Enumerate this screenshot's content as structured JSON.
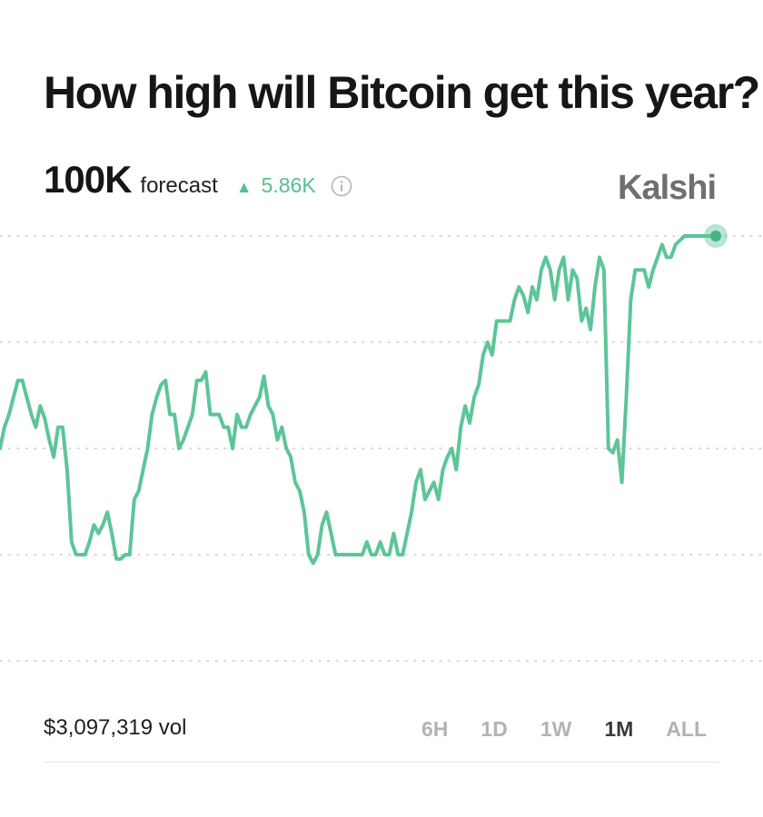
{
  "header": {
    "title": "How high will Bitcoin get this year?"
  },
  "forecast": {
    "value": "100K",
    "label": "forecast",
    "change": "5.86K",
    "change_direction": "up",
    "info_icon": "info-icon",
    "arrow_icon": "triangle-up-icon"
  },
  "brand": {
    "name": "Kalshi"
  },
  "footer": {
    "volume": "$3,097,319 vol",
    "ranges": [
      "6H",
      "1D",
      "1W",
      "1M",
      "ALL"
    ],
    "active_range": "1M"
  },
  "colors": {
    "accent": "#5dc597",
    "grid": "#c9c9c9",
    "brand": "#6f6f6f"
  },
  "chart_data": {
    "type": "line",
    "title": "",
    "xlabel": "",
    "ylabel": "",
    "grid": "horizontal dotted",
    "gridlines": 5,
    "ylim": [
      0,
      100
    ],
    "x": [
      0,
      1,
      2,
      3,
      4,
      5,
      6,
      7,
      8,
      9,
      10,
      11,
      12,
      13,
      14,
      15,
      16,
      17,
      18,
      19,
      20,
      21,
      22,
      23,
      24,
      25,
      26,
      27,
      28,
      29,
      30,
      31,
      32,
      33,
      34,
      35,
      36,
      37,
      38,
      39,
      40,
      41,
      42,
      43,
      44,
      45,
      46,
      47,
      48,
      49,
      50,
      51,
      52,
      53,
      54,
      55,
      56,
      57,
      58,
      59,
      60,
      61,
      62,
      63,
      64,
      65,
      66,
      67,
      68,
      69,
      70,
      71,
      72,
      73,
      74,
      75,
      76,
      77,
      78,
      79,
      80,
      81,
      82,
      83,
      84,
      85,
      86,
      87,
      88,
      89,
      90,
      91,
      92,
      93,
      94,
      95,
      96,
      97,
      98,
      99,
      100,
      101,
      102,
      103,
      104,
      105,
      106,
      107,
      108,
      109,
      110,
      111,
      112,
      113,
      114,
      115,
      116,
      117,
      118,
      119,
      120,
      121,
      122,
      123,
      124,
      125,
      126,
      127,
      128,
      129,
      130,
      131,
      132,
      133,
      134,
      135,
      136,
      137,
      138,
      139,
      140,
      141,
      142,
      143,
      144,
      145,
      146,
      147,
      148,
      149,
      150,
      151,
      152,
      153,
      154,
      155,
      156,
      157,
      158,
      159,
      160
    ],
    "series": [
      {
        "values": [
          50,
          55,
          58,
          62,
          66,
          66,
          62,
          58,
          55,
          60,
          57,
          52,
          48,
          55,
          55,
          45,
          28,
          25,
          25,
          25,
          28,
          32,
          30,
          32,
          35,
          30,
          24,
          24,
          25,
          25,
          38,
          40,
          45,
          50,
          58,
          62,
          65,
          66,
          58,
          58,
          50,
          52,
          55,
          58,
          66,
          66,
          68,
          58,
          58,
          58,
          55,
          55,
          50,
          58,
          55,
          55,
          58,
          60,
          62,
          67,
          60,
          58,
          52,
          55,
          50,
          48,
          42,
          40,
          35,
          25,
          23,
          25,
          32,
          35,
          30,
          25,
          25,
          25,
          25,
          25,
          25,
          25,
          28,
          25,
          25,
          28,
          25,
          25,
          30,
          25,
          25,
          30,
          35,
          42,
          45,
          38,
          40,
          42,
          38,
          45,
          48,
          50,
          45,
          55,
          60,
          56,
          62,
          65,
          72,
          75,
          72,
          80,
          80,
          80,
          80,
          85,
          88,
          86,
          82,
          88,
          85,
          92,
          95,
          92,
          85,
          92,
          95,
          85,
          92,
          90,
          80,
          83,
          78,
          88,
          95,
          92,
          50,
          49,
          52,
          42,
          62,
          85,
          92,
          92,
          92,
          88,
          92,
          95,
          98,
          95,
          95,
          98,
          99,
          100,
          100,
          100,
          100,
          100,
          100,
          100,
          100
        ]
      }
    ]
  }
}
